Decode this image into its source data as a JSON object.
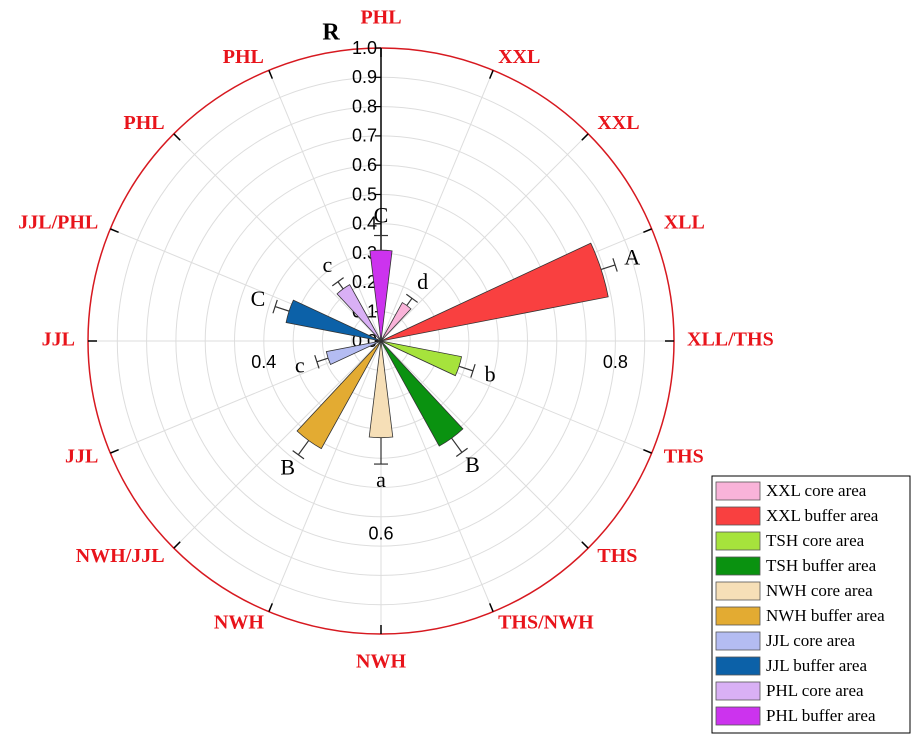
{
  "chart_data": {
    "type": "polar-bar",
    "radial_axis_label": "R",
    "directions": [
      "PHL",
      "XXL",
      "XXL",
      "XLL",
      "XLL/THS",
      "THS",
      "THS",
      "THS/NWH",
      "NWH",
      "NWH",
      "NWH/JJL",
      "JJL",
      "JJL",
      "JJL/PHL",
      "PHL",
      "PHL"
    ],
    "rlim": [
      0,
      1
    ],
    "rticks": [
      {
        "value": 0,
        "label": "0.0"
      },
      0.1,
      0.2,
      0.3,
      0.4,
      0.5,
      0.6,
      0.7,
      0.8,
      0.9,
      {
        "value": 1,
        "label": "1.0"
      }
    ],
    "spoke_ticks": [
      0.8,
      0.6,
      0.4
    ],
    "grid": true,
    "series": [
      {
        "name": "PHL buffer area",
        "color": "#cc33ee",
        "value": 0.31,
        "error": 0.05,
        "letter": "C"
      },
      {
        "name": "XXL core area",
        "color": "#f9b3d9",
        "value": 0.15,
        "error": 0.03,
        "letter": "d"
      },
      {
        "name": "XXL buffer area",
        "color": "#f94040",
        "value": 0.79,
        "error": 0.05,
        "letter": "A"
      },
      {
        "name": "TSH core area",
        "color": "#a6e33c",
        "value": 0.28,
        "error": 0.05,
        "letter": "b"
      },
      {
        "name": "TSH buffer area",
        "color": "#0a9210",
        "value": 0.41,
        "error": 0.06,
        "letter": "B"
      },
      {
        "name": "NWH core area",
        "color": "#f6dfb7",
        "value": 0.33,
        "error": 0.09,
        "letter": "a"
      },
      {
        "name": "NWH buffer area",
        "color": "#e3ab32",
        "value": 0.42,
        "error": 0.06,
        "letter": "B"
      },
      {
        "name": "JJL core area",
        "color": "#b4bcf2",
        "value": 0.19,
        "error": 0.04,
        "letter": "c"
      },
      {
        "name": "JJL buffer area",
        "color": "#0c61a8",
        "value": 0.33,
        "error": 0.05,
        "letter": "C"
      },
      {
        "name": "PHL core area",
        "color": "#d9b0f5",
        "value": 0.22,
        "error": 0.03,
        "letter": "c"
      }
    ],
    "legend_order": [
      1,
      2,
      3,
      4,
      5,
      6,
      7,
      8,
      9,
      0
    ]
  }
}
